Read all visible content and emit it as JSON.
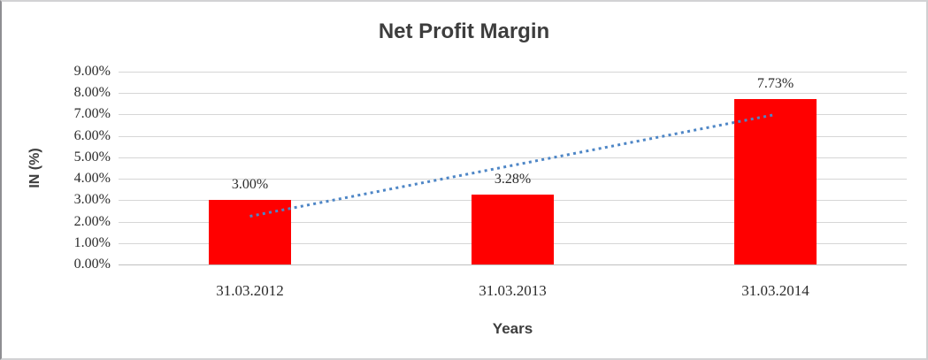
{
  "chart": {
    "title": "Net Profit Margin",
    "xlabel": "Years",
    "ylabel": "IN (%)"
  },
  "chart_data": {
    "type": "bar",
    "title": "Net Profit Margin",
    "categories": [
      "31.03.2012",
      "31.03.2013",
      "31.03.2014"
    ],
    "values": [
      3.0,
      3.28,
      7.73
    ],
    "data_labels": [
      "3.00%",
      "3.28%",
      "7.73%"
    ],
    "xlabel": "Years",
    "ylabel": "IN (%)",
    "ylim": [
      0,
      9
    ],
    "ytick_step": 1,
    "ytick_labels": [
      "0.00%",
      "1.00%",
      "2.00%",
      "3.00%",
      "4.00%",
      "5.00%",
      "6.00%",
      "7.00%",
      "8.00%",
      "9.00%"
    ],
    "grid": true,
    "legend": "none",
    "bar_color": "#ff0000",
    "gridline_color": "#d6d6d6",
    "trendline": {
      "type": "linear",
      "style": "dotted",
      "color": "#4e86c6",
      "start_value": 2.25,
      "end_value": 7.0
    }
  }
}
